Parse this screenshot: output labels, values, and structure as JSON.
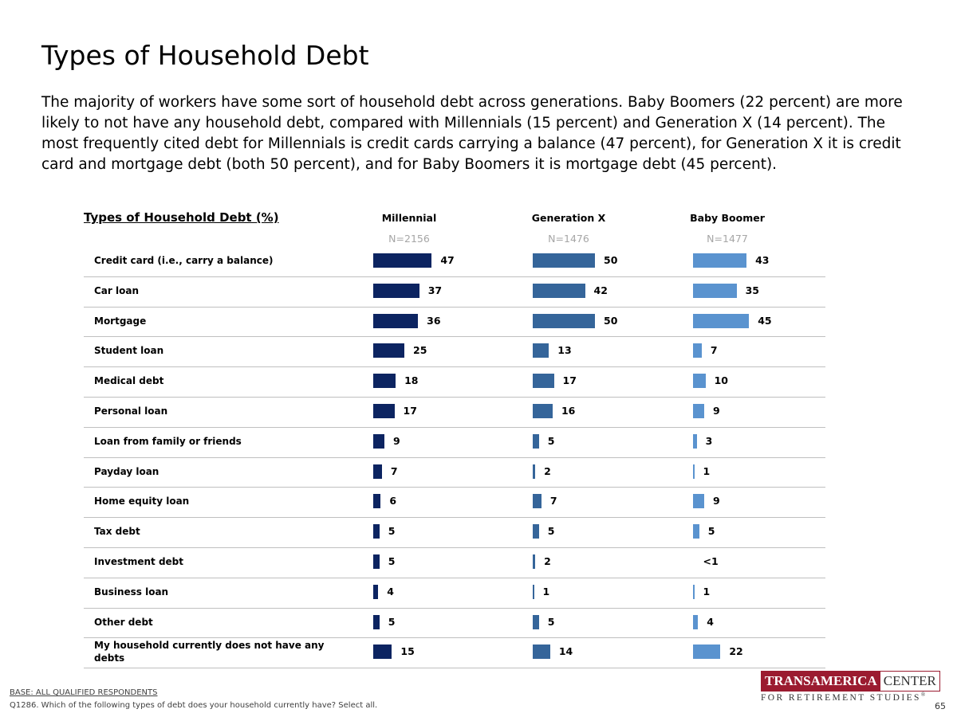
{
  "page": {
    "title": "Types of Household Debt",
    "subtitle": "The majority of workers have some sort of household debt across generations. Baby Boomers (22 percent) are more likely to not have any household debt, compared with Millennials (15 percent) and Generation X (14 percent). The most frequently cited debt for Millennials is credit cards carrying a balance (47 percent), for Generation X it is credit card and mortgage debt (both 50 percent), and for Baby Boomers it is mortgage debt (45 percent).",
    "base_note": "BASE: ALL QUALIFIED RESPONDENTS",
    "question_note": "Q1286. Which of the following types of debt does your household currently have? Select all.",
    "page_number": "65"
  },
  "logo": {
    "word1": "TRANSAMERICA",
    "word2": "CENTER",
    "sub": "FOR RETIREMENT STUDIES",
    "mark": "®"
  },
  "colors": {
    "millennial": "#0c2461",
    "genx": "#35659a",
    "boomer": "#5a93cf",
    "logo": "#9b1b30"
  },
  "chart_data": {
    "type": "bar",
    "orientation": "horizontal",
    "title": "Types of Household Debt (%)",
    "categories": [
      "Credit card (i.e., carry a balance)",
      "Car loan",
      "Mortgage",
      "Student loan",
      "Medical debt",
      "Personal loan",
      "Loan from family or friends",
      "Payday loan",
      "Home equity loan",
      "Tax debt",
      "Investment debt",
      "Business loan",
      "Other debt",
      "My household currently does not have any debts"
    ],
    "series": [
      {
        "name": "Millennial",
        "n": "N=2156",
        "values": [
          47,
          37,
          36,
          25,
          18,
          17,
          9,
          7,
          6,
          5,
          5,
          4,
          5,
          15
        ],
        "labels": [
          "47",
          "37",
          "36",
          "25",
          "18",
          "17",
          "9",
          "7",
          "6",
          "5",
          "5",
          "4",
          "5",
          "15"
        ]
      },
      {
        "name": "Generation X",
        "n": "N=1476",
        "values": [
          50,
          42,
          50,
          13,
          17,
          16,
          5,
          2,
          7,
          5,
          2,
          1,
          5,
          14
        ],
        "labels": [
          "50",
          "42",
          "50",
          "13",
          "17",
          "16",
          "5",
          "2",
          "7",
          "5",
          "2",
          "1",
          "5",
          "14"
        ]
      },
      {
        "name": "Baby Boomer",
        "n": "N=1477",
        "values": [
          43,
          35,
          45,
          7,
          10,
          9,
          3,
          1,
          9,
          5,
          0.3,
          1,
          4,
          22
        ],
        "labels": [
          "43",
          "35",
          "45",
          "7",
          "10",
          "9",
          "3",
          "1",
          "9",
          "5",
          "<1",
          "1",
          "4",
          "22"
        ]
      }
    ],
    "xlim": [
      0,
      100
    ]
  }
}
